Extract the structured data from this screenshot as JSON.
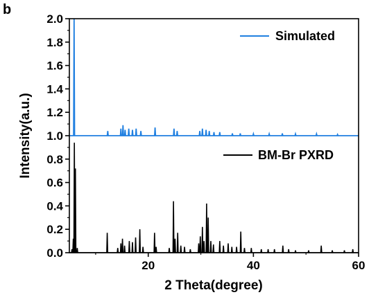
{
  "chart_data": {
    "type": "line",
    "panel_label": "b",
    "xlabel": "2 Theta(degree)",
    "ylabel": "Intensity(a.u.)",
    "xlim": [
      5,
      60
    ],
    "ylim": [
      0,
      2.0
    ],
    "x_ticks": [
      20,
      40,
      60
    ],
    "y_ticks": [
      0.0,
      0.2,
      0.4,
      0.6,
      0.8,
      1.0,
      1.2,
      1.4,
      1.6,
      1.8,
      2.0
    ],
    "y_tick_labels": [
      "0.0",
      "0.2",
      "0.4",
      "0.6",
      "0.8",
      "1.0",
      "1.2",
      "1.4",
      "1.6",
      "1.8",
      "2.0"
    ],
    "legend_position": "top-right",
    "grid": false,
    "series": [
      {
        "name": "Simulated",
        "color": "#1f7fe0",
        "baseline": 1.0,
        "peaks": [
          [
            5.9,
            2.0
          ],
          [
            12.3,
            1.04
          ],
          [
            14.8,
            1.06
          ],
          [
            15.2,
            1.09
          ],
          [
            15.6,
            1.05
          ],
          [
            16.3,
            1.06
          ],
          [
            17.0,
            1.05
          ],
          [
            17.7,
            1.06
          ],
          [
            18.6,
            1.04
          ],
          [
            21.3,
            1.07
          ],
          [
            24.9,
            1.06
          ],
          [
            25.5,
            1.04
          ],
          [
            29.8,
            1.04
          ],
          [
            30.3,
            1.06
          ],
          [
            31.0,
            1.05
          ],
          [
            31.6,
            1.04
          ],
          [
            32.5,
            1.03
          ],
          [
            33.6,
            1.03
          ],
          [
            36.0,
            1.02
          ],
          [
            37.5,
            1.02
          ],
          [
            40.0,
            1.015
          ],
          [
            43.0,
            1.015
          ],
          [
            45.5,
            1.02
          ],
          [
            48.0,
            1.015
          ],
          [
            52.0,
            1.015
          ],
          [
            56.0,
            1.01
          ]
        ]
      },
      {
        "name": "BM-Br PXRD",
        "color": "#000000",
        "baseline": 0.0,
        "peaks": [
          [
            5.5,
            0.03
          ],
          [
            5.75,
            0.12
          ],
          [
            5.95,
            0.94
          ],
          [
            6.15,
            0.72
          ],
          [
            6.5,
            0.04
          ],
          [
            12.2,
            0.17
          ],
          [
            14.2,
            0.04
          ],
          [
            14.8,
            0.08
          ],
          [
            15.1,
            0.12
          ],
          [
            15.5,
            0.06
          ],
          [
            16.4,
            0.1
          ],
          [
            17.0,
            0.09
          ],
          [
            17.6,
            0.13
          ],
          [
            18.4,
            0.2
          ],
          [
            19.0,
            0.05
          ],
          [
            21.2,
            0.17
          ],
          [
            21.5,
            0.05
          ],
          [
            24.0,
            0.04
          ],
          [
            24.8,
            0.44
          ],
          [
            25.1,
            0.12
          ],
          [
            25.6,
            0.17
          ],
          [
            26.2,
            0.06
          ],
          [
            26.9,
            0.05
          ],
          [
            28.0,
            0.03
          ],
          [
            29.6,
            0.08
          ],
          [
            29.9,
            0.14
          ],
          [
            30.3,
            0.22
          ],
          [
            30.6,
            0.1
          ],
          [
            31.1,
            0.42
          ],
          [
            31.4,
            0.3
          ],
          [
            31.9,
            0.1
          ],
          [
            32.4,
            0.07
          ],
          [
            33.6,
            0.1
          ],
          [
            34.3,
            0.06
          ],
          [
            35.2,
            0.08
          ],
          [
            35.9,
            0.05
          ],
          [
            36.8,
            0.05
          ],
          [
            37.6,
            0.18
          ],
          [
            38.3,
            0.04
          ],
          [
            39.6,
            0.04
          ],
          [
            41.5,
            0.03
          ],
          [
            42.8,
            0.03
          ],
          [
            44.0,
            0.03
          ],
          [
            45.6,
            0.06
          ],
          [
            46.7,
            0.03
          ],
          [
            48.0,
            0.02
          ],
          [
            50.5,
            0.02
          ],
          [
            52.9,
            0.06
          ],
          [
            55.0,
            0.02
          ],
          [
            57.3,
            0.02
          ],
          [
            58.9,
            0.03
          ]
        ]
      }
    ]
  }
}
